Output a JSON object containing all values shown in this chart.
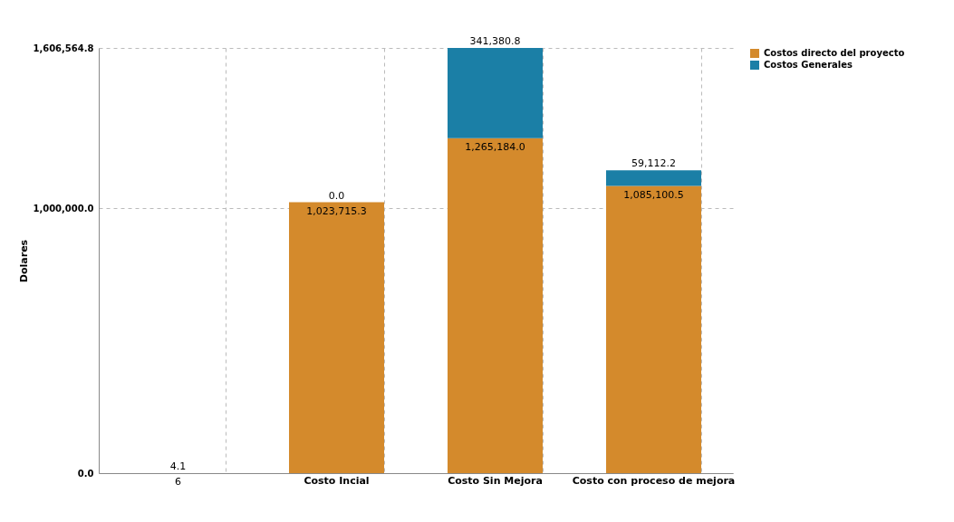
{
  "chart_data": {
    "type": "bar",
    "stacked": true,
    "ylabel": "Dolares",
    "categories": [
      null,
      "Costo Incial",
      "Costo Sin Mejora",
      "Costo con proceso de mejora"
    ],
    "series": [
      {
        "name": "Costos directo del proyecto",
        "color": "#d48a2c",
        "values": [
          6,
          1023715.3,
          1265184.0,
          1085100.5
        ],
        "value_labels": [
          "6",
          "1,023,715.3",
          "1,265,184.0",
          "1,085,100.5"
        ]
      },
      {
        "name": "Costos Generales",
        "color": "#1b7fa6",
        "values": [
          4.1,
          0.0,
          341380.8,
          59112.2
        ],
        "value_labels": [
          "4.1",
          "0.0",
          "341,380.8",
          "59,112.2"
        ]
      }
    ],
    "ylim": [
      0,
      1606564.8
    ],
    "yticks": [
      {
        "value": 0,
        "label": "0.0"
      },
      {
        "value": 1000000,
        "label": "1,000,000.0"
      },
      {
        "value": 1606564.8,
        "label": "1,606,564.8"
      }
    ],
    "grid": true,
    "legend": "right"
  }
}
